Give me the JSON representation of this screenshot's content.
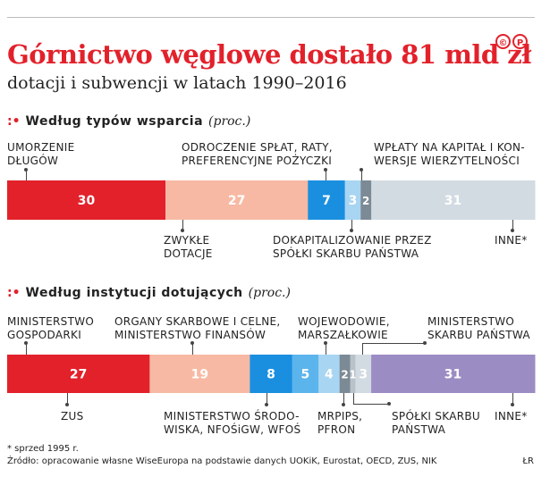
{
  "header": {
    "title": "Górnictwo węglowe dostało 81 mld zł",
    "subtitle": "dotacji i subwencji w latach 1990–2016",
    "copyright_mark": "©P"
  },
  "sections": [
    {
      "dots": ":•",
      "heading": "Według typów wsparcia",
      "unit": "(proc.)"
    },
    {
      "dots": ":•",
      "heading": "Według instytucji dotujących",
      "unit": "(proc.)"
    }
  ],
  "labels1": {
    "umorzenie": "UMORZENIE\nDŁUGÓW",
    "odroczenie": "ODROCZENIE SPŁAT, RATY,\nPREFERENCYJNE POŻYCZKI",
    "wplaty": "WPŁATY NA KAPITAŁ I KON-\nWERSJE WIERZYTELNOŚCI",
    "zwykle": "ZWYKŁE\nDOTACJE",
    "dokap": "DOKAPITALIZOWANIE PRZEZ\nSPÓŁKI SKARBU PAŃSTWA",
    "inne": "INNE*"
  },
  "labels2": {
    "mingosp": "MINISTERSTWO\nGOSPODARKI",
    "organy": "ORGANY SKARBOWE I CELNE,\nMINISTERSTWO FINANSÓW",
    "wojew": "WOJEWODOWIE,\nMARSZAŁKOWIE",
    "minskarb": "MINISTERSTWO\nSKARBU PAŃSTWA",
    "zus": "ZUS",
    "minsrod": "MINISTERSTWO ŚRODO-\nWISKA, NFOŚiGW, WFOŚ",
    "mrpips": "MRPIPS,\nPFRON",
    "spolki": "SPÓŁKI SKARBU\nPAŃSTWA",
    "inne": "INNE*"
  },
  "footer": {
    "note": "* sprzed 1995 r.",
    "source": "Źródło: opracowanie własne WiseEuropa na podstawie danych UOKiK, Eurostat, OECD, ZUS, NIK",
    "logo": "ŁR"
  },
  "chart_data": [
    {
      "type": "bar",
      "orientation": "horizontal-stacked",
      "title": "Według typów wsparcia (proc.)",
      "categories": [
        "Umorzenie długów",
        "Zwykłe dotacje",
        "Odroczenie spłat, raty, preferencyjne pożyczki",
        "Dokapitalizowanie przez spółki Skarbu Państwa",
        "Wpłaty na kapitał i konwersje wierzytelności",
        "Inne*"
      ],
      "values": [
        30,
        27,
        7,
        3,
        2,
        31
      ],
      "colors": [
        "#e2212b",
        "#f7b9a3",
        "#1a8fe0",
        "#a8d5f2",
        "#7c8a95",
        "#d2dbe1"
      ],
      "label_colors": [
        "#ffffff",
        "#ffffff",
        "#ffffff",
        "#ffffff",
        "#ffffff",
        "#ffffff"
      ],
      "xlim": [
        0,
        100
      ]
    },
    {
      "type": "bar",
      "orientation": "horizontal-stacked",
      "title": "Według instytucji dotujących (proc.)",
      "categories": [
        "Ministerstwo Gospodarki",
        "Organy skarbowe i celne, Ministerstwo Finansów",
        "ZUS",
        "Ministerstwo Środowiska, NFOŚiGW, WFOŚ",
        "Wojewodowie, marszałkowie",
        "MRPiPS, PFRON",
        "Spółki Skarbu Państwa",
        "Ministerstwo Skarbu Państwa",
        "Inne*"
      ],
      "values": [
        27,
        19,
        8,
        5,
        4,
        2,
        1,
        3,
        31
      ],
      "display_values": [
        "27",
        "19",
        "8",
        "5",
        "4",
        "2",
        "1",
        "3",
        "31"
      ],
      "colors": [
        "#e2212b",
        "#f7b9a3",
        "#1a8fe0",
        "#5cb4ec",
        "#a8d5f2",
        "#7c8a95",
        "#b8c2c9",
        "#d2dbe1",
        "#9c8cc4"
      ],
      "label_colors": [
        "#ffffff",
        "#ffffff",
        "#ffffff",
        "#ffffff",
        "#ffffff",
        "#ffffff",
        "#ffffff",
        "#ffffff",
        "#ffffff"
      ],
      "xlim": [
        0,
        100
      ]
    }
  ]
}
